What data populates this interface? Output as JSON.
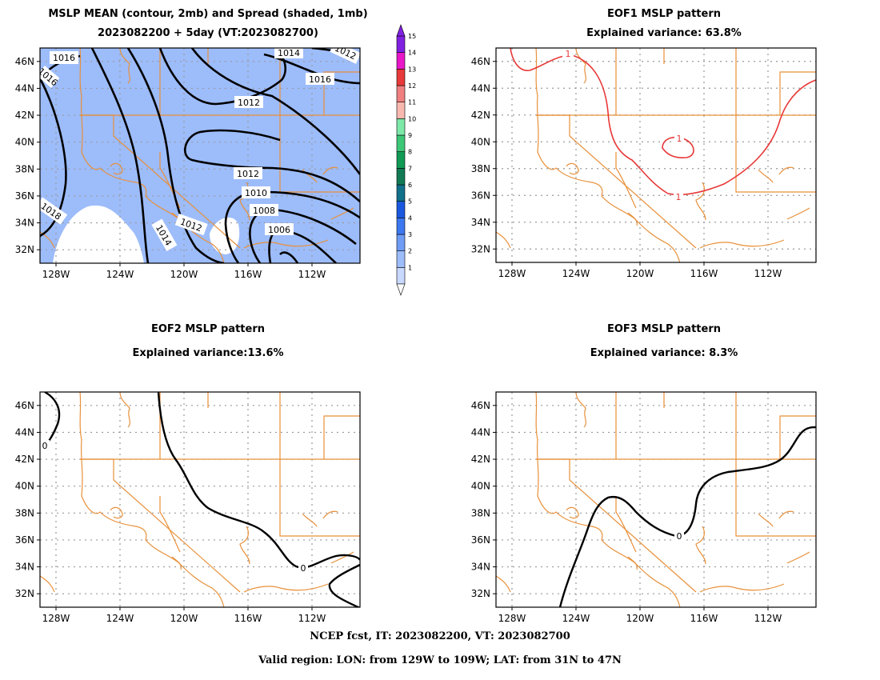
{
  "panels": [
    {
      "id": "p1",
      "title_line1": "MSLP MEAN (contour, 2mb) and Spread (shaded, 1mb)",
      "title_line2": "2023082200 + 5day (VT:2023082700)"
    },
    {
      "id": "p2",
      "title_line1": "EOF1 MSLP pattern",
      "title_line2": "Explained variance: 63.8%"
    },
    {
      "id": "p3",
      "title_line1": "EOF2 MSLP pattern",
      "title_line2": "Explained variance:13.6%"
    },
    {
      "id": "p4",
      "title_line1": "EOF3 MSLP pattern",
      "title_line2": "Explained variance: 8.3%"
    }
  ],
  "footer": {
    "line1": "NCEP fcst, IT: 2023082200, VT: 2023082700",
    "line2": "Valid region: LON: from 129W to 109W; LAT: from 31N to 47N"
  },
  "colors": {
    "spread_fill": "#9dbcfa",
    "coastline": "#e8903a",
    "eof1_contour": "#e83838",
    "contour": "#000000",
    "grid": "#9a9a9a"
  },
  "chart_data": [
    {
      "type": "heatmap",
      "name": "MSLP mean and spread",
      "lon_range": [
        -129,
        -109
      ],
      "lat_range": [
        31,
        47
      ],
      "x_ticks": [
        "128W",
        "124W",
        "120W",
        "116W",
        "112W"
      ],
      "y_ticks": [
        "46N",
        "44N",
        "42N",
        "40N",
        "38N",
        "36N",
        "34N",
        "32N"
      ],
      "contour_labels": [
        "1016",
        "1016",
        "1014",
        "1016",
        "1012",
        "1012",
        "1010",
        "1008",
        "1006",
        "1012",
        "1014",
        "1018",
        "1012"
      ],
      "colorbar": {
        "levels": [
          "1",
          "2",
          "3",
          "4",
          "5",
          "6",
          "7",
          "8",
          "9",
          "10",
          "11",
          "12",
          "13",
          "14",
          "15"
        ],
        "colors": [
          "#c8d8ff",
          "#9dbcfa",
          "#6f9cf5",
          "#3c78f0",
          "#1a58e0",
          "#11708a",
          "#117a55",
          "#119a55",
          "#3dc878",
          "#7ee8a8",
          "#f8b8b0",
          "#f08080",
          "#e83a3a",
          "#e818c8",
          "#8020e0"
        ]
      }
    },
    {
      "type": "line",
      "name": "EOF1 MSLP pattern",
      "lon_range": [
        -129,
        -109
      ],
      "lat_range": [
        31,
        47
      ],
      "x_ticks": [
        "128W",
        "124W",
        "120W",
        "116W",
        "112W"
      ],
      "y_ticks": [
        "46N",
        "44N",
        "42N",
        "40N",
        "38N",
        "36N",
        "34N",
        "32N"
      ],
      "contour_labels": [
        "1",
        "1",
        "1"
      ]
    },
    {
      "type": "line",
      "name": "EOF2 MSLP pattern",
      "lon_range": [
        -129,
        -109
      ],
      "lat_range": [
        31,
        47
      ],
      "x_ticks": [
        "128W",
        "124W",
        "120W",
        "116W",
        "112W"
      ],
      "y_ticks": [
        "46N",
        "44N",
        "42N",
        "40N",
        "38N",
        "36N",
        "34N",
        "32N"
      ],
      "contour_labels": [
        "0",
        "0"
      ]
    },
    {
      "type": "line",
      "name": "EOF3 MSLP pattern",
      "lon_range": [
        -129,
        -109
      ],
      "lat_range": [
        31,
        47
      ],
      "x_ticks": [
        "128W",
        "124W",
        "120W",
        "116W",
        "112W"
      ],
      "y_ticks": [
        "46N",
        "44N",
        "42N",
        "40N",
        "38N",
        "36N",
        "34N",
        "32N"
      ],
      "contour_labels": [
        "0"
      ]
    }
  ]
}
